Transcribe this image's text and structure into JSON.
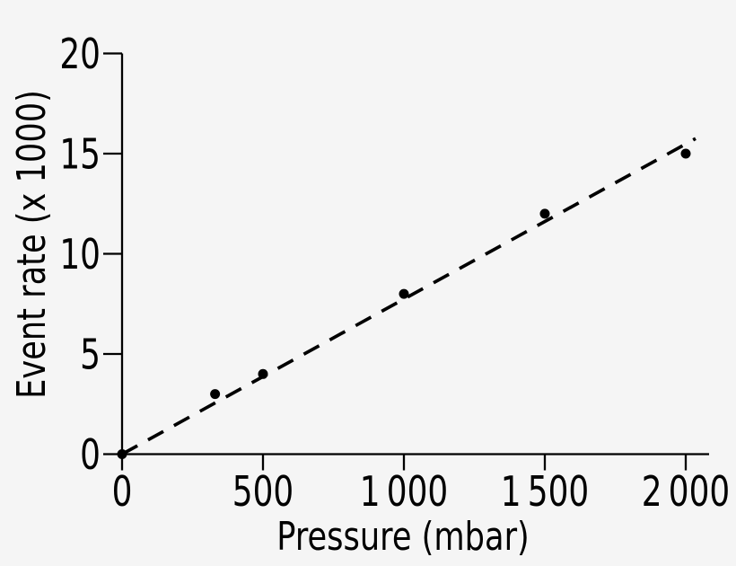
{
  "figure": {
    "background_color": "#f5f5f5",
    "ink_color": "#000000",
    "description": "Scatter plot of event rate versus pressure with dashed linear trend line through the origin"
  },
  "chart_data": {
    "type": "scatter",
    "title": "",
    "xlabel": "Pressure (mbar)",
    "ylabel": "Event rate (x 1000)",
    "xlim": [
      0,
      2000
    ],
    "ylim": [
      0,
      20
    ],
    "grid": false,
    "legend": null,
    "x_ticks": [
      {
        "value": 0,
        "label": "0"
      },
      {
        "value": 500,
        "label": "500"
      },
      {
        "value": 1000,
        "label": "1 000"
      },
      {
        "value": 1500,
        "label": "1 500"
      },
      {
        "value": 2000,
        "label": "2 000"
      }
    ],
    "y_ticks": [
      {
        "value": 0,
        "label": "0"
      },
      {
        "value": 5,
        "label": "5"
      },
      {
        "value": 10,
        "label": "10"
      },
      {
        "value": 15,
        "label": "15"
      },
      {
        "value": 20,
        "label": "20"
      }
    ],
    "points": [
      {
        "x": 0,
        "y": 0
      },
      {
        "x": 330,
        "y": 3
      },
      {
        "x": 500,
        "y": 4
      },
      {
        "x": 1000,
        "y": 8
      },
      {
        "x": 1500,
        "y": 12
      },
      {
        "x": 2000,
        "y": 15
      }
    ],
    "trendline": {
      "style": "dashed",
      "x_start": 0,
      "y_start": 0,
      "x_end": 2035,
      "y_end": 15.75
    },
    "marker": {
      "shape": "circle",
      "color": "#000000"
    }
  }
}
